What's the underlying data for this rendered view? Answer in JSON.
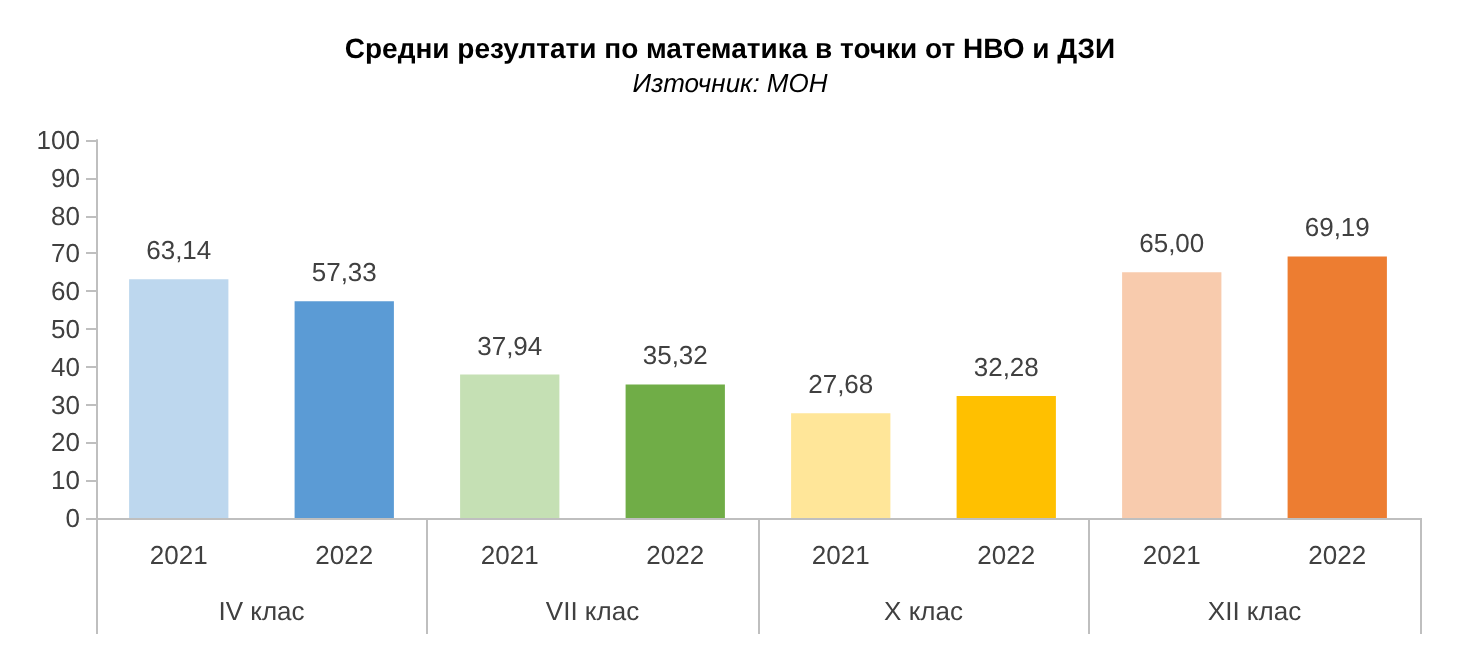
{
  "chart_data": {
    "type": "bar",
    "title": "Средни резултати по математика в точки от НВО и ДЗИ",
    "subtitle": "Източник: МОН",
    "categories": [
      "2021",
      "2022",
      "2021",
      "2022",
      "2021",
      "2022",
      "2021",
      "2022"
    ],
    "values": [
      63.14,
      57.33,
      37.94,
      35.32,
      27.68,
      32.28,
      65.0,
      69.19
    ],
    "colors": [
      "#bdd7ee",
      "#5b9bd5",
      "#c5e0b4",
      "#70ad47",
      "#ffe699",
      "#ffc000",
      "#f8cbad",
      "#ed7d31"
    ],
    "value_labels": [
      "63,14",
      "57,33",
      "37,94",
      "35,32",
      "27,68",
      "32,28",
      "65,00",
      "69,19"
    ],
    "annotations": [
      "IV клас",
      "VII клас",
      "X клас",
      "XII клас"
    ],
    "ylim": [
      0,
      100
    ],
    "yticks": [
      0,
      10,
      20,
      30,
      40,
      50,
      60,
      70,
      80,
      90,
      100
    ],
    "grid": false
  }
}
